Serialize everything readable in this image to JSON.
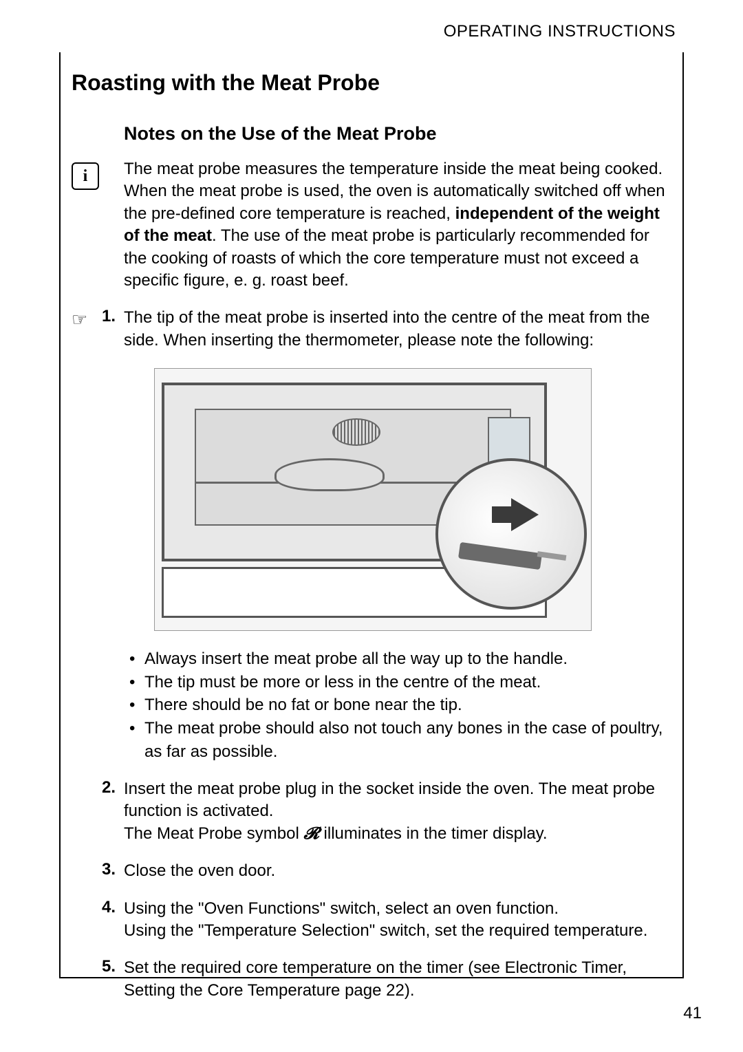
{
  "header": "OPERATING INSTRUCTIONS",
  "title": "Roasting with the Meat Probe",
  "subtitle": "Notes on the Use of the Meat Probe",
  "info_glyph": "i",
  "hand_glyph": "☞",
  "intro": {
    "part1": "The meat probe measures the temperature inside the meat being cooked. When the meat probe is used, the oven is automatically switched off when the pre-defined core temperature is reached, ",
    "bold": "independent of the weight of the meat",
    "part2": ". The use of the meat probe is particularly recommended for the cooking of roasts of which the core temperature must not exceed a specific figure, e. g. roast beef."
  },
  "step1": {
    "num": "1.",
    "text": "The tip of the meat probe is inserted into the centre of the meat from the side. When inserting the thermometer, please note the following:"
  },
  "bullets": [
    "Always insert the meat probe all the way up to the handle.",
    "The tip must be more or less in the centre of the meat.",
    "There should be no fat or bone near the tip.",
    "The meat probe should also not touch any bones in the case of poultry, as far as possible."
  ],
  "step2": {
    "num": "2.",
    "line1": "Insert the meat probe plug in the socket inside the oven. The meat probe function is activated.",
    "line2a": "The Meat Probe symbol ",
    "symbol": "𝓡",
    "line2b": " illuminates in the timer display."
  },
  "step3": {
    "num": "3.",
    "text": "Close the oven door."
  },
  "step4": {
    "num": "4.",
    "line1": "Using the \"Oven Functions\" switch, select an oven function.",
    "line2": "Using the \"Temperature Selection\" switch, set the required temperature."
  },
  "step5": {
    "num": "5.",
    "text": "Set the required core temperature on the timer (see Electronic Timer, Setting the Core Temperature page 22)."
  },
  "page_number": "41"
}
